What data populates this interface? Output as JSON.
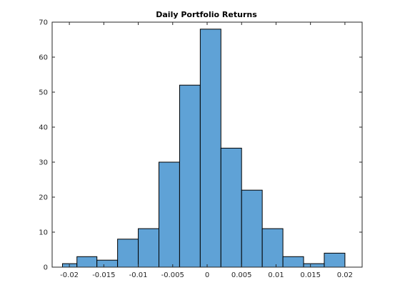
{
  "chart_data": {
    "type": "bar",
    "title": "Daily Portfolio Returns",
    "xlabel": "",
    "ylabel": "",
    "bin_edges": [
      -0.021,
      -0.0189,
      -0.016,
      -0.013,
      -0.01,
      -0.007,
      -0.004,
      -0.001,
      0.002,
      0.005,
      0.008,
      0.011,
      0.014,
      0.017,
      0.02
    ],
    "values": [
      1,
      3,
      2,
      8,
      11,
      30,
      52,
      68,
      34,
      22,
      11,
      3,
      1,
      4
    ],
    "xlim": [
      -0.0225,
      0.0225
    ],
    "ylim": [
      0,
      70
    ],
    "xticks": [
      -0.02,
      -0.015,
      -0.01,
      -0.005,
      0,
      0.005,
      0.01,
      0.015,
      0.02
    ],
    "xtick_labels": [
      "-0.02",
      "-0.015",
      "-0.01",
      "-0.005",
      "0",
      "0.005",
      "0.01",
      "0.015",
      "0.02"
    ],
    "yticks": [
      0,
      10,
      20,
      30,
      40,
      50,
      60,
      70
    ],
    "ytick_labels": [
      "0",
      "10",
      "20",
      "30",
      "40",
      "50",
      "60",
      "70"
    ],
    "grid": false,
    "bar_color": "#5fa2d6",
    "edge_color": "#000000"
  }
}
